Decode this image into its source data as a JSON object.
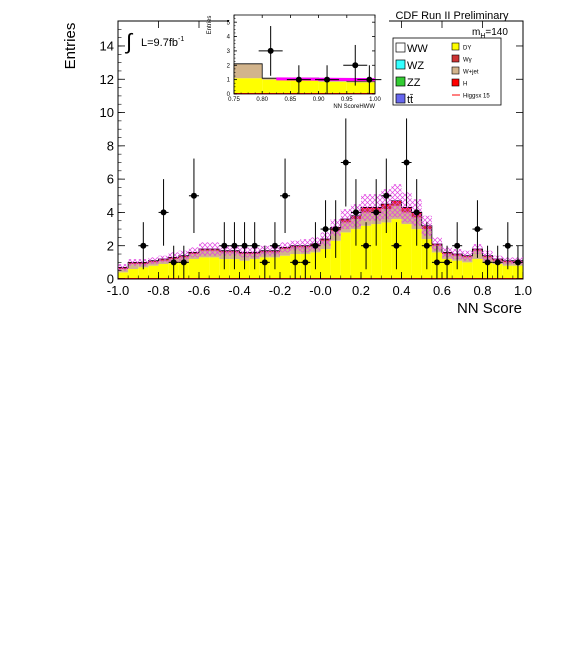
{
  "chart_data": [
    {
      "type": "bar",
      "title": "CDF Run II Preliminary",
      "xlabel": "NN Score",
      "ylabel": "Entries",
      "xlim": [
        -1.0,
        1.0
      ],
      "ylim": [
        0,
        15.5
      ],
      "xticks": [
        "-1.0",
        "-0.8",
        "-0.6",
        "-0.4",
        "-0.2",
        "-0.0",
        "0.2",
        "0.4",
        "0.6",
        "0.8",
        "1.0"
      ],
      "yticks": [
        "0",
        "2",
        "4",
        "6",
        "8",
        "10",
        "12",
        "14"
      ],
      "luminosity_label": "L=9.7fb",
      "luminosity_exponent": "-1",
      "mass_label": "m",
      "mass_subscript": "H",
      "mass_value": "=140",
      "grid": false,
      "legend_placement": "top-right",
      "legend": [
        {
          "label": "WW",
          "color": "#ffffff",
          "type": "box",
          "size": "large"
        },
        {
          "label": "DY",
          "color": "#ffff00",
          "type": "box",
          "size": "small"
        },
        {
          "label": "WZ",
          "color": "#33ffff",
          "type": "box",
          "size": "large"
        },
        {
          "label": "Wγ",
          "color": "#cc3333",
          "type": "box",
          "size": "small"
        },
        {
          "label": "ZZ",
          "color": "#33cc33",
          "type": "box",
          "size": "large"
        },
        {
          "label": "W+jet",
          "color": "#d2b48c",
          "type": "box",
          "size": "small"
        },
        {
          "label": "tt̄",
          "color": "#6666ee",
          "type": "box",
          "size": "large"
        },
        {
          "label": "H",
          "color": "#ff0000",
          "type": "box",
          "size": "small"
        },
        {
          "label": "Higgsx 15",
          "color": "#ff0000",
          "type": "line",
          "size": "small"
        }
      ],
      "bin_edges": [
        -1.0,
        -0.95,
        -0.9,
        -0.85,
        -0.8,
        -0.75,
        -0.7,
        -0.65,
        -0.6,
        -0.55,
        -0.5,
        -0.45,
        -0.4,
        -0.35,
        -0.3,
        -0.25,
        -0.2,
        -0.15,
        -0.1,
        -0.05,
        0.0,
        0.05,
        0.1,
        0.15,
        0.2,
        0.25,
        0.3,
        0.35,
        0.4,
        0.45,
        0.5,
        0.55,
        0.6,
        0.65,
        0.7,
        0.75,
        0.8,
        0.85,
        0.9,
        0.95,
        1.0
      ],
      "stack": [
        {
          "name": "DY",
          "color": "#ffff00",
          "values": [
            0.4,
            0.6,
            0.7,
            0.8,
            0.9,
            1.0,
            1.0,
            1.2,
            1.3,
            1.3,
            1.2,
            1.2,
            1.1,
            1.2,
            1.3,
            1.3,
            1.4,
            1.5,
            1.5,
            1.6,
            1.8,
            2.3,
            2.8,
            3.0,
            3.2,
            3.3,
            3.4,
            3.6,
            3.3,
            3.0,
            2.4,
            1.6,
            1.2,
            1.1,
            1.0,
            1.2,
            1.0,
            0.9,
            0.8,
            0.8
          ]
        },
        {
          "name": "W+jet",
          "color": "#d2b48c",
          "values": [
            0.2,
            0.3,
            0.2,
            0.2,
            0.2,
            0.2,
            0.3,
            0.3,
            0.4,
            0.4,
            0.4,
            0.4,
            0.4,
            0.3,
            0.3,
            0.3,
            0.4,
            0.4,
            0.4,
            0.4,
            0.5,
            0.6,
            0.6,
            0.6,
            0.8,
            0.7,
            0.8,
            0.8,
            0.7,
            0.7,
            0.6,
            0.4,
            0.3,
            0.3,
            0.3,
            0.5,
            0.3,
            0.2,
            0.2,
            0.2
          ]
        },
        {
          "name": "Wγ",
          "color": "#cc3333",
          "values": [
            0.1,
            0.1,
            0.1,
            0.1,
            0.1,
            0.1,
            0.1,
            0.1,
            0.1,
            0.1,
            0.1,
            0.1,
            0.1,
            0.1,
            0.1,
            0.1,
            0.1,
            0.1,
            0.1,
            0.1,
            0.1,
            0.2,
            0.2,
            0.2,
            0.2,
            0.2,
            0.2,
            0.2,
            0.2,
            0.2,
            0.2,
            0.1,
            0.1,
            0.1,
            0.1,
            0.1,
            0.1,
            0.1,
            0.1,
            0.1
          ]
        },
        {
          "name": "H",
          "color": "#ff0000",
          "values": [
            0.0,
            0.0,
            0.0,
            0.0,
            0.0,
            0.0,
            0.0,
            0.0,
            0.0,
            0.0,
            0.0,
            0.0,
            0.0,
            0.0,
            0.0,
            0.0,
            0.0,
            0.0,
            0.0,
            0.0,
            0.0,
            0.0,
            0.0,
            0.0,
            0.1,
            0.1,
            0.1,
            0.1,
            0.1,
            0.1,
            0.0,
            0.0,
            0.0,
            0.0,
            0.0,
            0.0,
            0.0,
            0.0,
            0.0,
            0.0
          ]
        }
      ],
      "uncertainty_band": [
        0.2,
        0.2,
        0.2,
        0.2,
        0.2,
        0.3,
        0.3,
        0.3,
        0.4,
        0.4,
        0.3,
        0.3,
        0.3,
        0.3,
        0.3,
        0.3,
        0.3,
        0.3,
        0.4,
        0.4,
        0.4,
        0.5,
        0.6,
        0.7,
        0.8,
        0.8,
        0.9,
        1.0,
        0.9,
        0.8,
        0.6,
        0.4,
        0.3,
        0.3,
        0.3,
        0.3,
        0.3,
        0.2,
        0.2,
        0.2
      ],
      "data_points": {
        "x": [
          -0.875,
          -0.775,
          -0.725,
          -0.675,
          -0.625,
          -0.475,
          -0.425,
          -0.375,
          -0.325,
          -0.275,
          -0.225,
          -0.175,
          -0.125,
          -0.075,
          -0.025,
          0.025,
          0.075,
          0.125,
          0.175,
          0.225,
          0.275,
          0.325,
          0.375,
          0.425,
          0.475,
          0.525,
          0.575,
          0.625,
          0.675,
          0.775,
          0.825,
          0.875,
          0.925,
          0.975
        ],
        "y": [
          2,
          4,
          1,
          1,
          5,
          2,
          2,
          2,
          2,
          1,
          2,
          5,
          1,
          1,
          2,
          3,
          3,
          7,
          4,
          2,
          4,
          5,
          2,
          7,
          4,
          2,
          1,
          1,
          2,
          3,
          1,
          1,
          2,
          1
        ]
      }
    },
    {
      "type": "bar",
      "title": "",
      "xlabel": "NN ScoreHWW",
      "ylabel": "Entries",
      "xlim": [
        0.75,
        1.0
      ],
      "ylim": [
        0,
        5.5
      ],
      "xticks": [
        "0.75",
        "0.80",
        "0.85",
        "0.90",
        "0.95",
        "1.00"
      ],
      "yticks": [
        "0",
        "1",
        "2",
        "3",
        "4",
        "5"
      ],
      "bin_edges": [
        0.75,
        0.8,
        0.85,
        0.9,
        0.95,
        1.0
      ],
      "stack": [
        {
          "name": "DY",
          "color": "#ffff00",
          "values": [
            1.1,
            1.0,
            1.0,
            0.85,
            0.8
          ]
        },
        {
          "name": "W+jet",
          "color": "#d2b48c",
          "values": [
            1.0,
            0.1,
            0.1,
            0.1,
            0.1
          ]
        }
      ],
      "higgs_line": {
        "x": [
          0.825,
          1.0
        ],
        "y": [
          1.05,
          1.0
        ],
        "color": "#ff00ff"
      },
      "data_points": {
        "x": [
          0.815,
          0.865,
          0.915,
          0.965,
          0.99
        ],
        "y": [
          3,
          1,
          1,
          2,
          1
        ]
      }
    }
  ]
}
